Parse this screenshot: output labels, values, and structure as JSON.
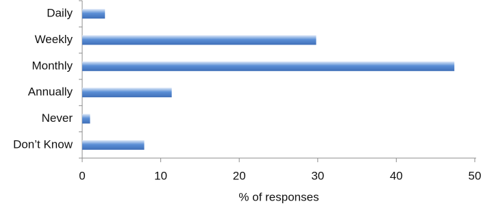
{
  "chart_data": {
    "type": "hbar",
    "categories": [
      "Daily",
      "Weekly",
      "Monthly",
      "Annually",
      "Never",
      "Don’t Know"
    ],
    "values": [
      2.9,
      29.8,
      47.4,
      11.4,
      1.0,
      7.9
    ],
    "color": "#5b8fd6",
    "xlabel": "% of responses",
    "xlim": [
      0,
      50
    ],
    "xticks": [
      0,
      10,
      20,
      30,
      40,
      50
    ],
    "grid": false
  }
}
